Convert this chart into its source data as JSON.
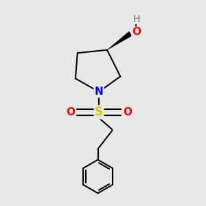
{
  "background_color": "#e8e8e8",
  "atom_colors": {
    "C": "#000000",
    "N": "#0000ff",
    "O": "#ff0000",
    "S": "#cccc00",
    "H": "#607070"
  },
  "figsize": [
    3.0,
    3.0
  ],
  "dpi": 100,
  "lw": 1.5
}
